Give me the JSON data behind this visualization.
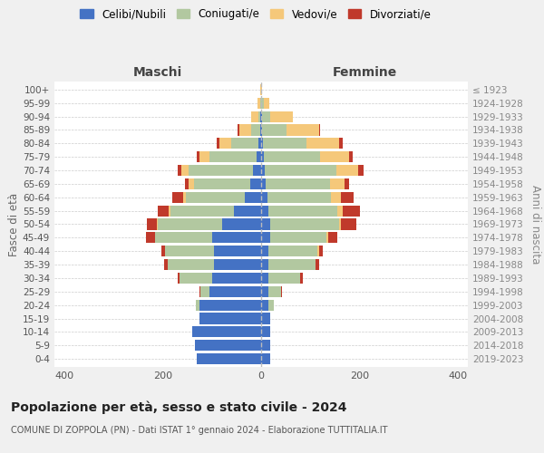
{
  "age_groups": [
    "0-4",
    "5-9",
    "10-14",
    "15-19",
    "20-24",
    "25-29",
    "30-34",
    "35-39",
    "40-44",
    "45-49",
    "50-54",
    "55-59",
    "60-64",
    "65-69",
    "70-74",
    "75-79",
    "80-84",
    "85-89",
    "90-94",
    "95-99",
    "100+"
  ],
  "birth_years": [
    "2019-2023",
    "2014-2018",
    "2009-2013",
    "2004-2008",
    "1999-2003",
    "1994-1998",
    "1989-1993",
    "1984-1988",
    "1979-1983",
    "1974-1978",
    "1969-1973",
    "1964-1968",
    "1959-1963",
    "1954-1958",
    "1949-1953",
    "1944-1948",
    "1939-1943",
    "1934-1938",
    "1929-1933",
    "1924-1928",
    "≤ 1923"
  ],
  "colors": {
    "celibe": "#4472C4",
    "coniugato": "#b2c8a0",
    "vedovo": "#f5c87a",
    "divorziato": "#c0392b"
  },
  "maschi": {
    "celibe": [
      130,
      135,
      140,
      125,
      125,
      105,
      100,
      95,
      95,
      100,
      80,
      55,
      33,
      22,
      17,
      10,
      5,
      2,
      1,
      0,
      0
    ],
    "coniugato": [
      0,
      0,
      0,
      0,
      8,
      18,
      65,
      95,
      100,
      115,
      130,
      130,
      120,
      115,
      130,
      95,
      55,
      18,
      5,
      2,
      0
    ],
    "vedovo": [
      0,
      0,
      0,
      0,
      0,
      0,
      0,
      0,
      0,
      1,
      2,
      3,
      5,
      10,
      15,
      20,
      25,
      25,
      15,
      5,
      1
    ],
    "divorziato": [
      0,
      0,
      0,
      0,
      0,
      2,
      5,
      8,
      8,
      18,
      20,
      22,
      22,
      8,
      8,
      5,
      5,
      2,
      0,
      0,
      0
    ]
  },
  "femmine": {
    "nubile": [
      18,
      18,
      18,
      18,
      15,
      15,
      15,
      15,
      15,
      18,
      18,
      15,
      12,
      10,
      8,
      5,
      3,
      2,
      1,
      0,
      0
    ],
    "coniugata": [
      0,
      0,
      0,
      0,
      10,
      25,
      65,
      95,
      100,
      115,
      140,
      140,
      130,
      130,
      145,
      115,
      90,
      50,
      18,
      5,
      0
    ],
    "vedova": [
      0,
      0,
      0,
      0,
      0,
      0,
      0,
      0,
      2,
      3,
      5,
      10,
      20,
      30,
      45,
      58,
      65,
      65,
      45,
      12,
      2
    ],
    "divorziata": [
      0,
      0,
      0,
      0,
      0,
      2,
      5,
      8,
      8,
      18,
      30,
      35,
      25,
      8,
      10,
      8,
      8,
      2,
      0,
      0,
      0
    ]
  },
  "title_main": "Popolazione per età, sesso e stato civile - 2024",
  "title_sub": "COMUNE DI ZOPPOLA (PN) - Dati ISTAT 1° gennaio 2024 - Elaborazione TUTTITALIA.IT",
  "xlabel_left": "Maschi",
  "xlabel_right": "Femmine",
  "ylabel_left": "Fasce di età",
  "ylabel_right": "Anni di nascita",
  "xlim": 420,
  "legend_labels": [
    "Celibi/Nubili",
    "Coniugati/e",
    "Vedovi/e",
    "Divorziati/e"
  ],
  "bg_color": "#f0f0f0",
  "plot_bg_color": "#ffffff",
  "grid_color": "#cccccc",
  "bar_height": 0.82
}
